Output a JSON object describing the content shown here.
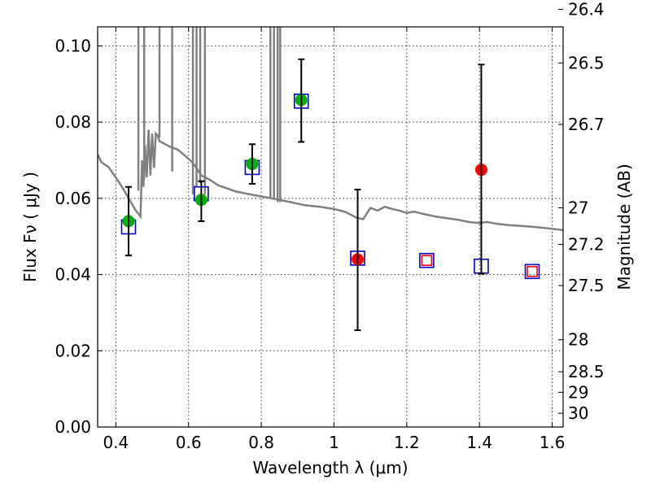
{
  "chart_data": {
    "type": "scatter",
    "title": "",
    "xlabel": "Wavelength  λ (μm)",
    "ylabel": "Flux  Fν  ( μJy )",
    "y2label": "Magnitude (AB)",
    "xlim": [
      0.35,
      1.63
    ],
    "ylim": [
      0.0,
      0.105
    ],
    "grid": true,
    "x_ticks": [
      0.4,
      0.6,
      0.8,
      1.0,
      1.2,
      1.4,
      1.6
    ],
    "x_tick_labels": [
      "0.4",
      "0.6",
      "0.8",
      "1",
      "1.2",
      "1.4",
      "1.6"
    ],
    "y_ticks": [
      0.0,
      0.02,
      0.04,
      0.06,
      0.08,
      0.1
    ],
    "y_tick_labels": [
      "0.00",
      "0.02",
      "0.04",
      "0.06",
      "0.08",
      "0.10"
    ],
    "mag_ticks": [
      {
        "flux": 0.1096,
        "label": "26.4"
      },
      {
        "flux": 0.0955,
        "label": "26.5"
      },
      {
        "flux": 0.0794,
        "label": "26.7"
      },
      {
        "flux": 0.0575,
        "label": "27"
      },
      {
        "flux": 0.0479,
        "label": "27.2"
      },
      {
        "flux": 0.0371,
        "label": "27.5"
      },
      {
        "flux": 0.0229,
        "label": "28"
      },
      {
        "flux": 0.0145,
        "label": "28.5"
      },
      {
        "flux": 0.0091,
        "label": "29"
      },
      {
        "flux": 0.0036,
        "label": "30"
      }
    ],
    "series": [
      {
        "type": "line",
        "color": "#808080",
        "points": [
          [
            0.35,
            0.0715
          ],
          [
            0.36,
            0.0695
          ],
          [
            0.38,
            0.0682
          ],
          [
            0.4,
            0.0655
          ],
          [
            0.42,
            0.0625
          ],
          [
            0.44,
            0.0592
          ],
          [
            0.455,
            0.0568
          ],
          [
            0.468,
            0.0552
          ],
          [
            0.472,
            0.07
          ],
          [
            0.476,
            0.063
          ],
          [
            0.48,
            0.074
          ],
          [
            0.485,
            0.0655
          ],
          [
            0.49,
            0.078
          ],
          [
            0.495,
            0.066
          ],
          [
            0.5,
            0.077
          ],
          [
            0.505,
            0.068
          ],
          [
            0.51,
            0.077
          ],
          [
            0.515,
            0.0765
          ],
          [
            0.52,
            0.075
          ],
          [
            0.53,
            0.0745
          ],
          [
            0.54,
            0.074
          ],
          [
            0.55,
            0.0735
          ],
          [
            0.57,
            0.0728
          ],
          [
            0.59,
            0.0712
          ],
          [
            0.61,
            0.0695
          ],
          [
            0.62,
            0.0682
          ],
          [
            0.635,
            0.066
          ],
          [
            0.66,
            0.0648
          ],
          [
            0.68,
            0.0635
          ],
          [
            0.7,
            0.0628
          ],
          [
            0.73,
            0.0618
          ],
          [
            0.76,
            0.0612
          ],
          [
            0.8,
            0.0605
          ],
          [
            0.84,
            0.0598
          ],
          [
            0.88,
            0.059
          ],
          [
            0.92,
            0.0582
          ],
          [
            0.96,
            0.0578
          ],
          [
            1.0,
            0.0572
          ],
          [
            1.03,
            0.0565
          ],
          [
            1.05,
            0.0555
          ],
          [
            1.06,
            0.055
          ],
          [
            1.08,
            0.0545
          ],
          [
            1.1,
            0.0575
          ],
          [
            1.12,
            0.0568
          ],
          [
            1.14,
            0.0578
          ],
          [
            1.16,
            0.0572
          ],
          [
            1.18,
            0.0568
          ],
          [
            1.2,
            0.0562
          ],
          [
            1.22,
            0.0565
          ],
          [
            1.25,
            0.0558
          ],
          [
            1.28,
            0.0552
          ],
          [
            1.31,
            0.0548
          ],
          [
            1.34,
            0.0544
          ],
          [
            1.37,
            0.0538
          ],
          [
            1.4,
            0.0535
          ],
          [
            1.42,
            0.0538
          ],
          [
            1.45,
            0.0533
          ],
          [
            1.48,
            0.053
          ],
          [
            1.51,
            0.0528
          ],
          [
            1.55,
            0.0525
          ],
          [
            1.58,
            0.0522
          ],
          [
            1.62,
            0.0518
          ],
          [
            1.63,
            0.0516
          ]
        ],
        "spikes": [
          [
            0.462,
            0.062,
            0.11
          ],
          [
            0.478,
            0.065,
            0.11
          ],
          [
            0.52,
            0.076,
            0.11
          ],
          [
            0.555,
            0.067,
            0.11
          ],
          [
            0.612,
            0.061,
            0.11
          ],
          [
            0.622,
            0.063,
            0.11
          ],
          [
            0.632,
            0.064,
            0.11
          ],
          [
            0.645,
            0.061,
            0.11
          ],
          [
            0.825,
            0.06,
            0.11
          ],
          [
            0.835,
            0.06,
            0.11
          ],
          [
            0.845,
            0.059,
            0.11
          ],
          [
            0.852,
            0.059,
            0.11
          ]
        ]
      },
      {
        "type": "open-square",
        "color": "#0000cc",
        "points": [
          [
            0.435,
            0.0525
          ],
          [
            0.635,
            0.0612
          ],
          [
            0.775,
            0.0681
          ],
          [
            0.91,
            0.0855
          ],
          [
            1.065,
            0.0443
          ],
          [
            1.255,
            0.0437
          ],
          [
            1.405,
            0.0422
          ],
          [
            1.545,
            0.0408
          ]
        ]
      },
      {
        "type": "open-square-small",
        "color": "#ff0000",
        "points": [
          [
            1.255,
            0.0437
          ],
          [
            1.545,
            0.0408
          ]
        ]
      },
      {
        "type": "filled-circle",
        "color": "#00b200",
        "points": [
          [
            0.435,
            0.054
          ],
          [
            0.635,
            0.0596
          ],
          [
            0.775,
            0.069
          ],
          [
            0.91,
            0.0858
          ]
        ]
      },
      {
        "type": "filled-circle",
        "color": "#ff0000",
        "points": [
          [
            1.065,
            0.044
          ],
          [
            1.405,
            0.0675
          ]
        ]
      },
      {
        "type": "errorbar",
        "color": "#000000",
        "points": [
          [
            0.435,
            0.045,
            0.063
          ],
          [
            0.635,
            0.054,
            0.0645
          ],
          [
            0.775,
            0.0638,
            0.0742
          ],
          [
            0.91,
            0.0748,
            0.0965
          ],
          [
            1.065,
            0.0254,
            0.0623
          ],
          [
            1.405,
            0.0402,
            0.0951
          ]
        ]
      }
    ]
  }
}
